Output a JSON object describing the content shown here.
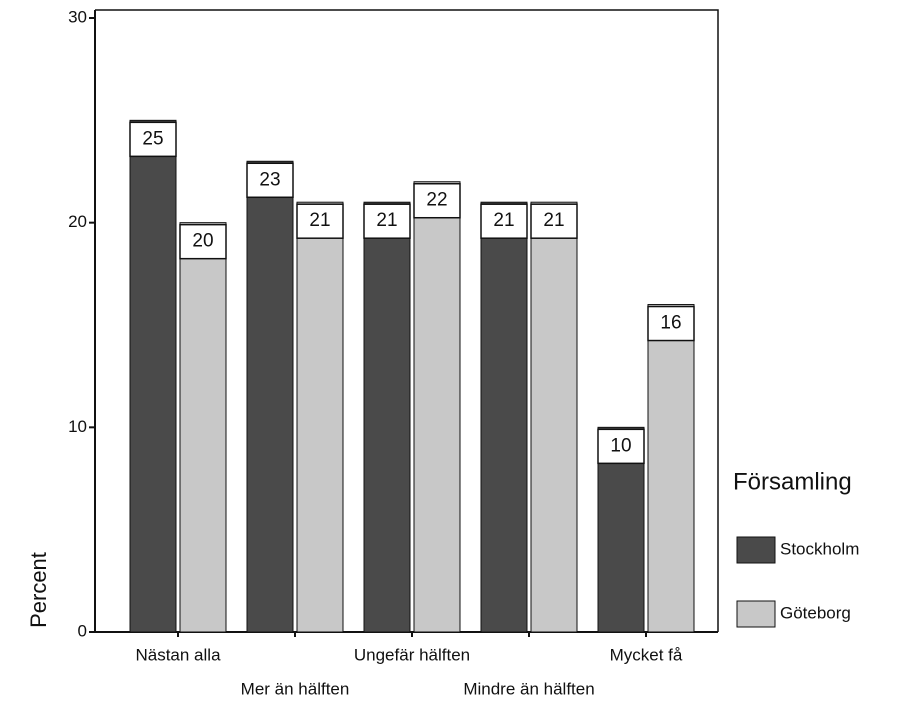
{
  "chart_data": {
    "type": "bar",
    "y_label": "Percent",
    "categories": [
      "Nästan alla",
      "Mer än hälften",
      "Ungefär hälften",
      "Mindre än hälften",
      "Mycket få"
    ],
    "series": [
      {
        "name": "Stockholm",
        "color": "#4a4a4a",
        "values": [
          25,
          23,
          21,
          21,
          10
        ]
      },
      {
        "name": "Göteborg",
        "color": "#c8c8c8",
        "values": [
          20,
          21,
          22,
          21,
          16
        ]
      }
    ],
    "ylim": [
      0,
      30
    ],
    "yticks": [
      0,
      10,
      20,
      30
    ],
    "legend_title": "Församling",
    "legend": "right"
  }
}
